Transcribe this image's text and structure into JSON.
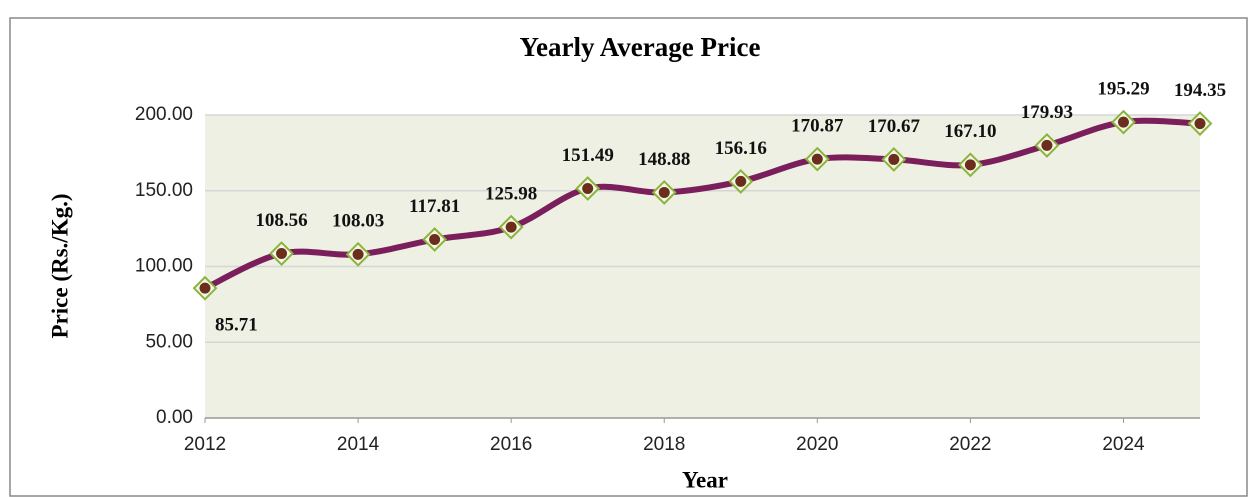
{
  "chart_data": {
    "type": "line",
    "title": "Yearly Average Price",
    "x_label": "Year",
    "y_label": "Price (Rs./Kg.)",
    "x": [
      2012,
      2013,
      2014,
      2015,
      2016,
      2017,
      2018,
      2019,
      2020,
      2021,
      2022,
      2023,
      2024,
      2025
    ],
    "series": [
      {
        "name": "Yearly Average Price",
        "color": "#7b1f5c",
        "values": [
          85.71,
          108.56,
          108.03,
          117.81,
          125.98,
          151.49,
          148.88,
          156.16,
          170.87,
          170.67,
          167.1,
          179.93,
          195.29,
          194.35
        ],
        "value_labels": [
          "85.71",
          "108.56",
          "108.03",
          "117.81",
          "125.98",
          "151.49",
          "148.88",
          "156.16",
          "170.87",
          "170.67",
          "167.10",
          "179.93",
          "195.29",
          "194.35"
        ]
      }
    ],
    "xlim": [
      2012,
      2025
    ],
    "xticks": [
      2012,
      2014,
      2016,
      2018,
      2020,
      2022,
      2024
    ],
    "ylim": [
      0,
      200
    ],
    "yticks": [
      {
        "value": 0,
        "label": "0.00"
      },
      {
        "value": 50,
        "label": "50.00"
      },
      {
        "value": 100,
        "label": "100.00"
      },
      {
        "value": 150,
        "label": "150.00"
      },
      {
        "value": 200,
        "label": "200.00"
      }
    ],
    "grid": true
  }
}
